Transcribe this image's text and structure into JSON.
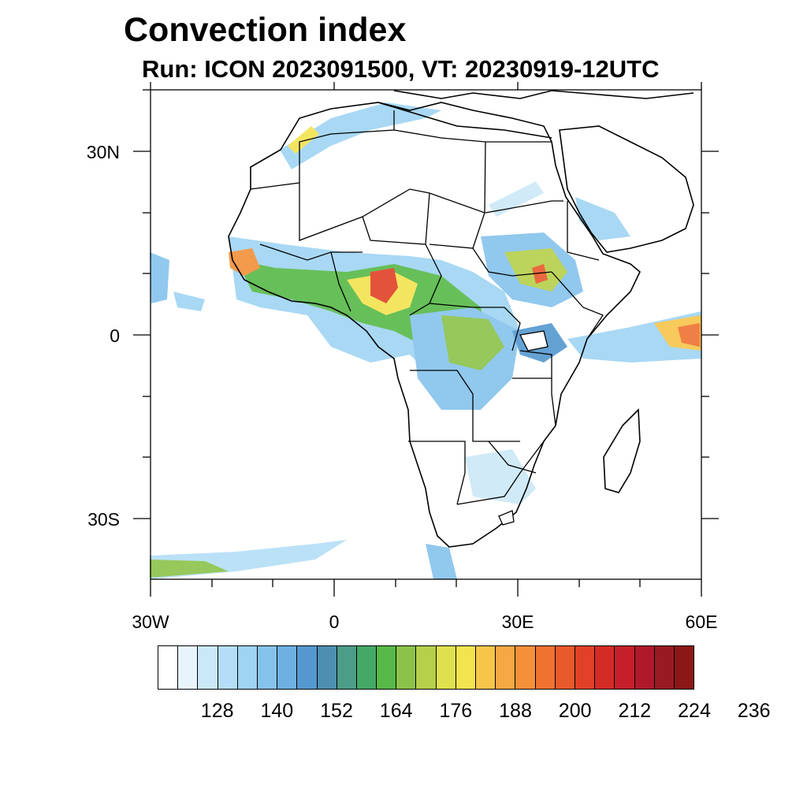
{
  "title": "Convection index",
  "subtitle": "Run: ICON 2023091500,  VT: 20230919-12UTC",
  "axes": {
    "lat_labels": [
      "30N",
      "0",
      "30S"
    ],
    "lon_labels": [
      "30W",
      "0",
      "30E",
      "60E"
    ]
  },
  "colorbar": {
    "colors": [
      "#ffffff",
      "#e8f4fc",
      "#cbe8f8",
      "#b4def7",
      "#9fd4f3",
      "#86c3ec",
      "#6eb0e2",
      "#5598d0",
      "#4e8fb0",
      "#4b9d88",
      "#44a866",
      "#57b948",
      "#8bc34a",
      "#b5d04b",
      "#dfe04d",
      "#f3e34f",
      "#f7c54a",
      "#f5a843",
      "#f39039",
      "#ef7231",
      "#e8592b",
      "#e04128",
      "#d52b26",
      "#c51f2a",
      "#b0192a",
      "#981a23",
      "#8b1717"
    ],
    "labels": [
      "128",
      "140",
      "152",
      "164",
      "176",
      "188",
      "200",
      "212",
      "224",
      "236"
    ]
  }
}
